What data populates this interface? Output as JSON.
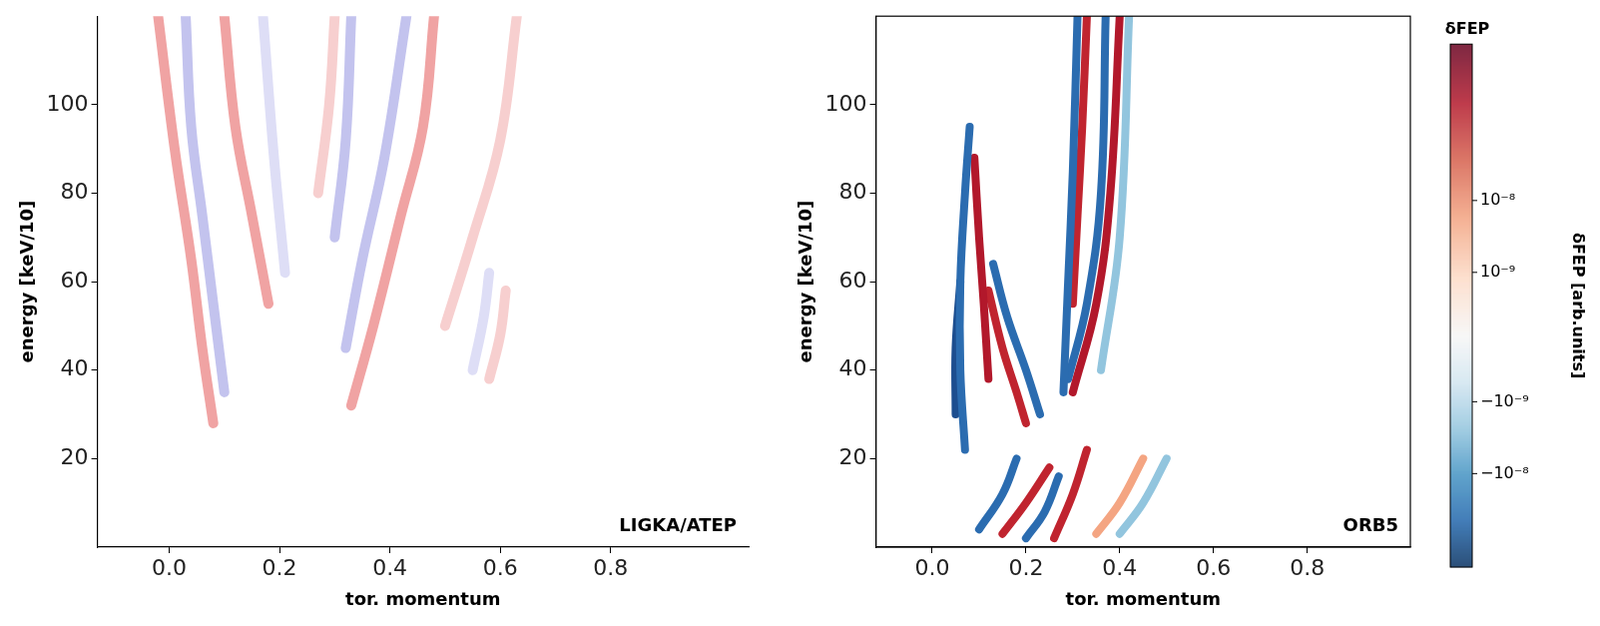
{
  "chart_data": [
    {
      "type": "line",
      "annotation": "LIGKA/ATEP",
      "x_label": "tor. momentum",
      "y_label": "energy [keV/10]",
      "xlim": [
        -0.13,
        1.05
      ],
      "ylim": [
        0,
        120
      ],
      "xticks": [
        {
          "value": 0,
          "label": "0.0"
        },
        {
          "value": 0.2,
          "label": "0.2"
        },
        {
          "value": 0.4,
          "label": "0.4"
        },
        {
          "value": 0.6,
          "label": "0.6"
        },
        {
          "value": 0.8,
          "label": "0.8"
        }
      ],
      "yticks": [
        20,
        40,
        60,
        80,
        100
      ],
      "grid": false,
      "series": [
        {
          "color": "#f0a3a3",
          "x": [
            0.08,
            0.06,
            0.04,
            0.01,
            -0.02
          ],
          "values": [
            28,
            45,
            65,
            90,
            120
          ]
        },
        {
          "color": "#c3c3ee",
          "x": [
            0.1,
            0.08,
            0.06,
            0.04,
            0.03
          ],
          "values": [
            35,
            55,
            75,
            95,
            120
          ]
        },
        {
          "color": "#f0a3a3",
          "x": [
            0.18,
            0.15,
            0.12,
            0.1
          ],
          "values": [
            55,
            75,
            95,
            120
          ]
        },
        {
          "color": "#dedef6",
          "x": [
            0.21,
            0.19,
            0.17
          ],
          "values": [
            62,
            88,
            120
          ]
        },
        {
          "color": "#f0a3a3",
          "x": [
            0.33,
            0.37,
            0.42,
            0.46,
            0.48
          ],
          "values": [
            32,
            50,
            75,
            95,
            120
          ]
        },
        {
          "color": "#c3c3ee",
          "x": [
            0.32,
            0.35,
            0.39,
            0.43
          ],
          "values": [
            45,
            65,
            88,
            120
          ]
        },
        {
          "color": "#c3c3ee",
          "x": [
            0.3,
            0.32,
            0.33
          ],
          "values": [
            70,
            92,
            120
          ]
        },
        {
          "color": "#f7cfcf",
          "x": [
            0.27,
            0.29,
            0.3
          ],
          "values": [
            80,
            100,
            120
          ]
        },
        {
          "color": "#f7cfcf",
          "x": [
            0.5,
            0.55,
            0.6,
            0.63
          ],
          "values": [
            50,
            70,
            92,
            120
          ]
        },
        {
          "color": "#f7cfcf",
          "x": [
            0.58,
            0.6,
            0.61
          ],
          "values": [
            38,
            48,
            58
          ]
        },
        {
          "color": "#dedef6",
          "x": [
            0.55,
            0.57,
            0.58
          ],
          "values": [
            40,
            52,
            62
          ]
        }
      ]
    },
    {
      "type": "line",
      "annotation": "ORB5",
      "x_label": "tor. momentum",
      "y_label": "energy [keV/10]",
      "xlim": [
        -0.12,
        1.02
      ],
      "ylim": [
        0,
        120
      ],
      "xticks": [
        {
          "value": 0,
          "label": "0.0"
        },
        {
          "value": 0.2,
          "label": "0.2"
        },
        {
          "value": 0.4,
          "label": "0.4"
        },
        {
          "value": 0.6,
          "label": "0.6"
        },
        {
          "value": 0.8,
          "label": "0.8"
        }
      ],
      "yticks": [
        20,
        40,
        60,
        80,
        100
      ],
      "grid": false,
      "colorbar": {
        "title": "δFEP",
        "label": "δFEP [arb.units]",
        "range": [
          -2e-07,
          1.5e-06
        ],
        "ticks": [
          {
            "value": 1e-08,
            "label": "10⁻⁸"
          },
          {
            "value": 1e-09,
            "label": "10⁻⁹"
          },
          {
            "value": -1e-09,
            "label": "−10⁻⁹"
          },
          {
            "value": -1e-08,
            "label": "−10⁻⁸"
          }
        ]
      },
      "series": [
        {
          "color": "#2b6cb0",
          "x": [
            0.07,
            0.06,
            0.06,
            0.07,
            0.08
          ],
          "values": [
            22,
            40,
            60,
            80,
            95
          ]
        },
        {
          "color": "#1d4e8f",
          "x": [
            0.05,
            0.05,
            0.06
          ],
          "values": [
            30,
            45,
            60
          ]
        },
        {
          "color": "#b2182b",
          "x": [
            0.12,
            0.11,
            0.1,
            0.09
          ],
          "values": [
            38,
            55,
            70,
            88
          ]
        },
        {
          "color": "#c0242f",
          "x": [
            0.12,
            0.15,
            0.18,
            0.2
          ],
          "values": [
            58,
            45,
            35,
            28
          ]
        },
        {
          "color": "#2b6cb0",
          "x": [
            0.13,
            0.16,
            0.2,
            0.23
          ],
          "values": [
            64,
            52,
            40,
            30
          ]
        },
        {
          "color": "#2b6cb0",
          "x": [
            0.28,
            0.29,
            0.3,
            0.31
          ],
          "values": [
            35,
            60,
            85,
            120
          ]
        },
        {
          "color": "#c0242f",
          "x": [
            0.3,
            0.31,
            0.32,
            0.33
          ],
          "values": [
            55,
            75,
            95,
            120
          ]
        },
        {
          "color": "#2b6cb0",
          "x": [
            0.29,
            0.33,
            0.36,
            0.37
          ],
          "values": [
            38,
            55,
            80,
            120
          ]
        },
        {
          "color": "#b2182b",
          "x": [
            0.3,
            0.35,
            0.38,
            0.4
          ],
          "values": [
            35,
            55,
            80,
            120
          ]
        },
        {
          "color": "#92c5de",
          "x": [
            0.36,
            0.4,
            0.42
          ],
          "values": [
            40,
            70,
            120
          ]
        },
        {
          "color": "#c0242f",
          "x": [
            0.15,
            0.2,
            0.25
          ],
          "values": [
            3,
            10,
            18
          ]
        },
        {
          "color": "#2b6cb0",
          "x": [
            0.1,
            0.15,
            0.18
          ],
          "values": [
            4,
            12,
            20
          ]
        },
        {
          "color": "#c0242f",
          "x": [
            0.26,
            0.3,
            0.33
          ],
          "values": [
            2,
            12,
            22
          ]
        },
        {
          "color": "#2b6cb0",
          "x": [
            0.2,
            0.24,
            0.27
          ],
          "values": [
            2,
            8,
            16
          ]
        },
        {
          "color": "#f4a582",
          "x": [
            0.35,
            0.4,
            0.45
          ],
          "values": [
            3,
            10,
            20
          ]
        },
        {
          "color": "#92c5de",
          "x": [
            0.4,
            0.45,
            0.5
          ],
          "values": [
            3,
            10,
            20
          ]
        }
      ]
    }
  ]
}
